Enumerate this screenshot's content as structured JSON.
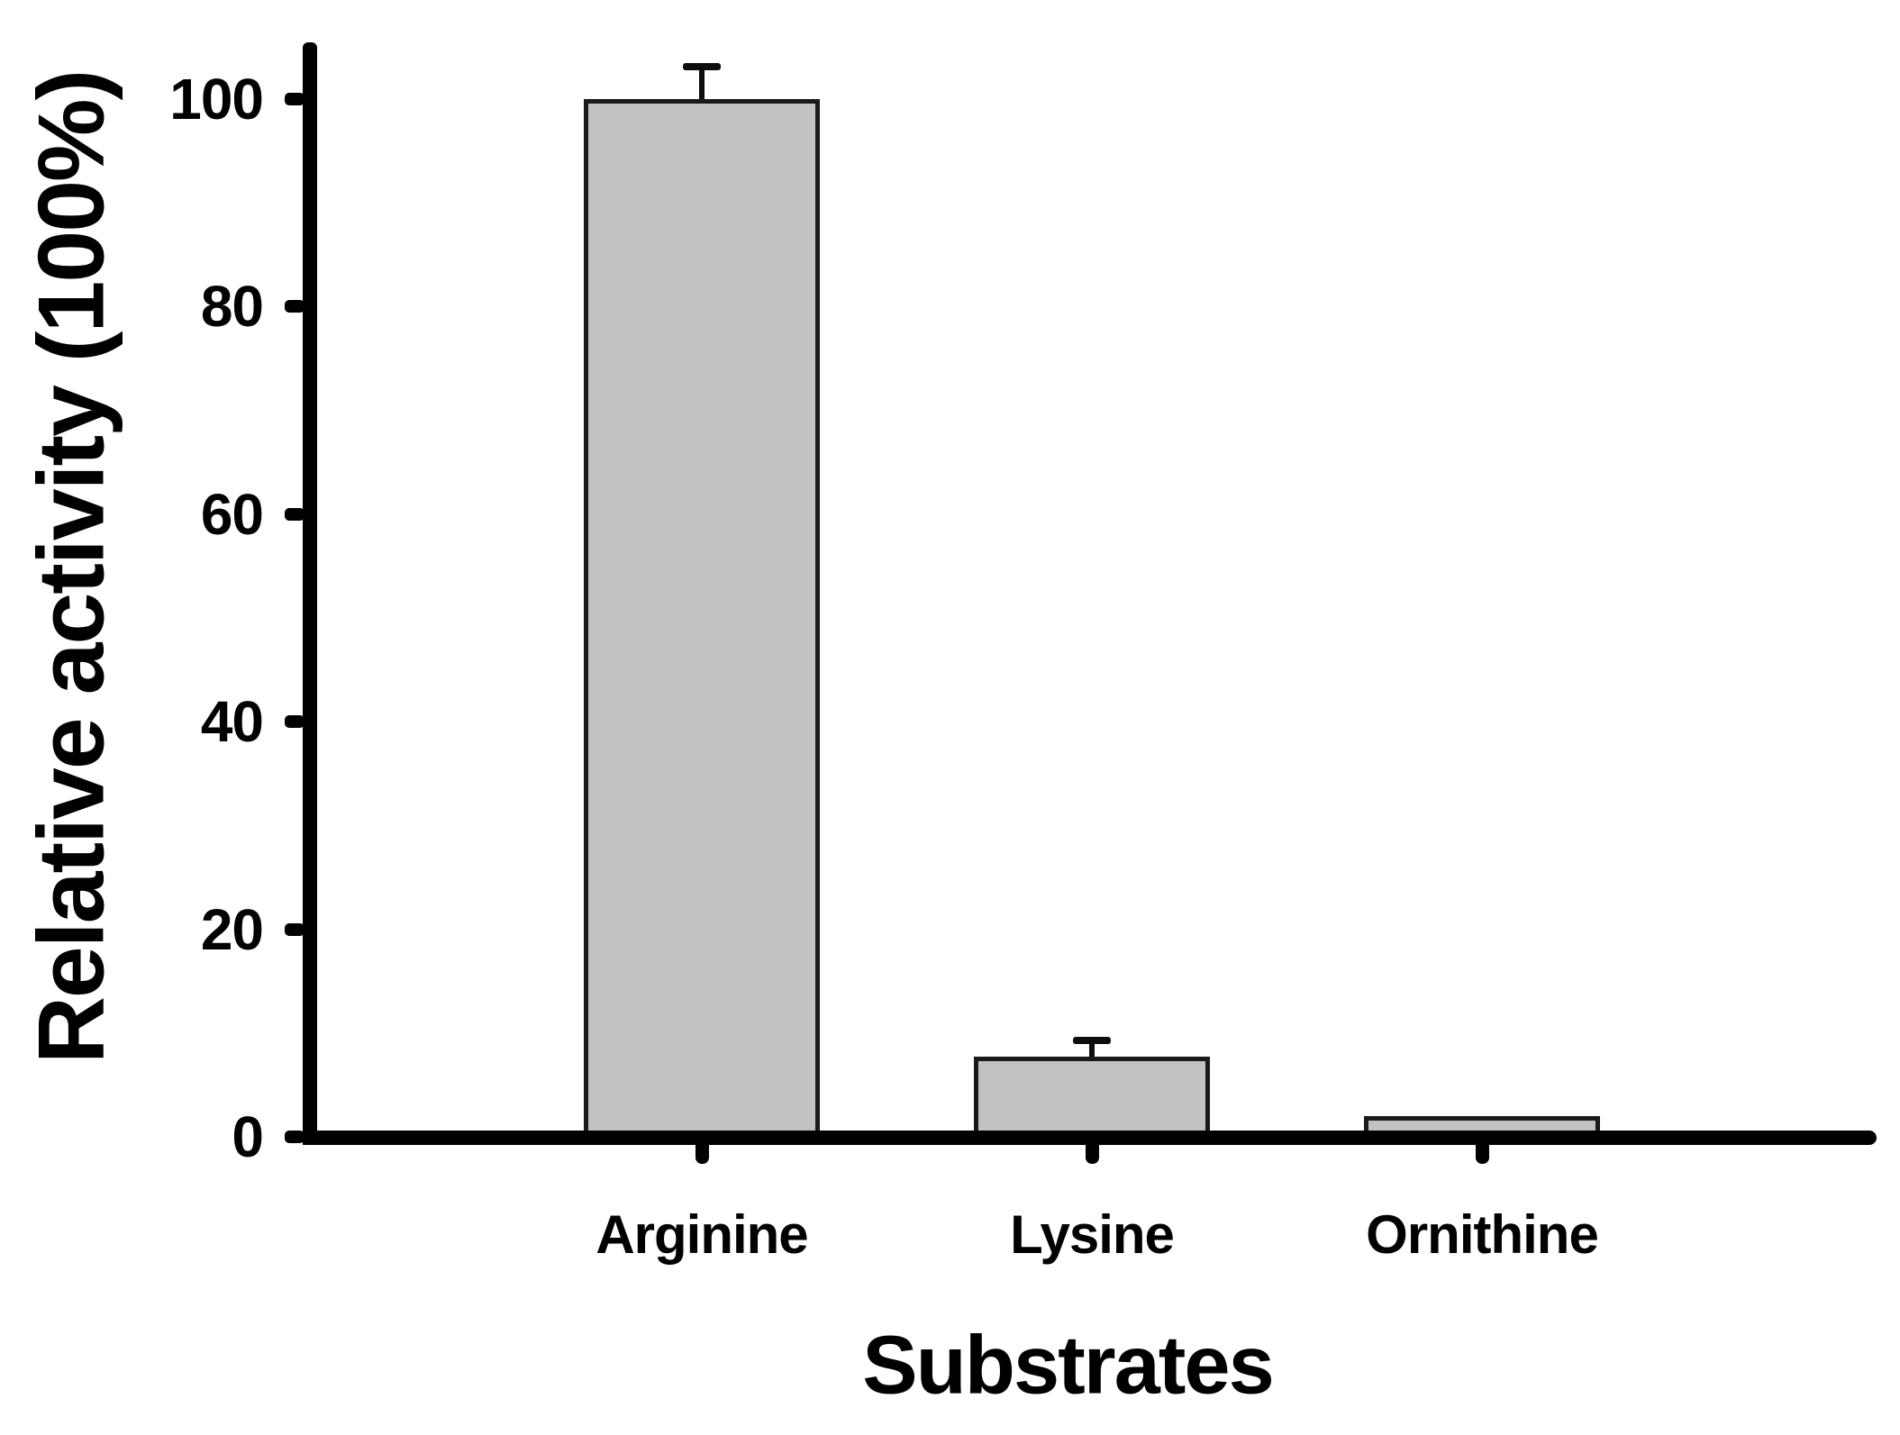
{
  "chart_data": {
    "type": "bar",
    "categories": [
      "Arginine",
      "Lysine",
      "Ornithine"
    ],
    "values": [
      100,
      7.7,
      2
    ],
    "errors": [
      3.1,
      1.6,
      0
    ],
    "xlabel": "Substrates",
    "ylabel": "Relative activity (100%)",
    "ylim": [
      0,
      100
    ],
    "yticks": [
      0,
      20,
      40,
      60,
      80,
      100
    ],
    "grid": false,
    "legend": false,
    "bar_fill_color": "#c2c2c2",
    "bar_border_color": "#1a1a1a",
    "axis_color": "#000000",
    "text_color": "#000000",
    "background_color": "#ffffff"
  }
}
